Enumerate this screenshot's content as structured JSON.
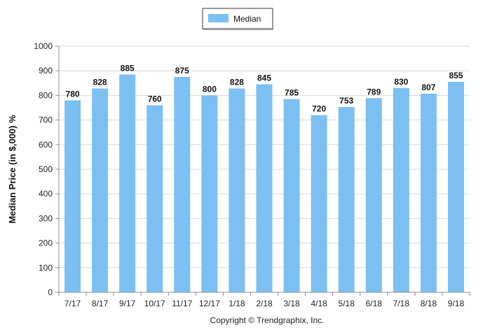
{
  "chart_data": {
    "type": "bar",
    "categories": [
      "7/17",
      "8/17",
      "9/17",
      "10/17",
      "11/17",
      "12/17",
      "1/18",
      "2/18",
      "3/18",
      "4/18",
      "5/18",
      "6/18",
      "7/18",
      "8/18",
      "9/18"
    ],
    "series": [
      {
        "name": "Median",
        "values": [
          780,
          828,
          885,
          760,
          875,
          800,
          828,
          845,
          785,
          720,
          753,
          789,
          830,
          807,
          855
        ],
        "color": "#7cbff2"
      }
    ],
    "title": "",
    "xlabel": "",
    "ylabel": "Median Price (in $,000) %",
    "ylim": [
      0,
      1000
    ],
    "yticks": [
      0,
      100,
      200,
      300,
      400,
      500,
      600,
      700,
      800,
      900,
      1000
    ],
    "grid": true,
    "legend_position": "top-center",
    "data_labels": true
  },
  "footer": {
    "copyright": "Copyright © Trendgraphix, Inc."
  },
  "colors": {
    "bar": "#7cbff2",
    "grid": "#d9d9d9",
    "axis": "#8c8c8c"
  }
}
